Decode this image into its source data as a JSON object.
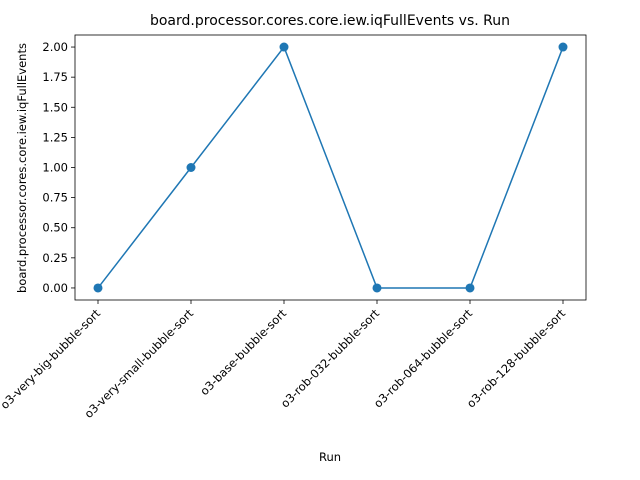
{
  "chart_data": {
    "type": "line",
    "title": "board.processor.cores.core.iew.iqFullEvents vs. Run",
    "xlabel": "Run",
    "ylabel": "board.processor.cores.core.iew.iqFullEvents",
    "categories": [
      "o3-very-big-bubble-sort",
      "o3-very-small-bubble-sort",
      "o3-base-bubble-sort",
      "o3-rob-032-bubble-sort",
      "o3-rob-064-bubble-sort",
      "o3-rob-128-bubble-sort"
    ],
    "values": [
      0,
      1,
      2,
      0,
      0,
      2
    ],
    "ylim": [
      -0.1,
      2.1
    ],
    "yticks": [
      0.0,
      0.25,
      0.5,
      0.75,
      1.0,
      1.25,
      1.5,
      1.75,
      2.0
    ],
    "ytick_labels": [
      "0.00",
      "0.25",
      "0.50",
      "0.75",
      "1.00",
      "1.25",
      "1.50",
      "1.75",
      "2.00"
    ],
    "color": "#1f77b4",
    "marker": "circle",
    "grid": false,
    "legend": "none"
  }
}
